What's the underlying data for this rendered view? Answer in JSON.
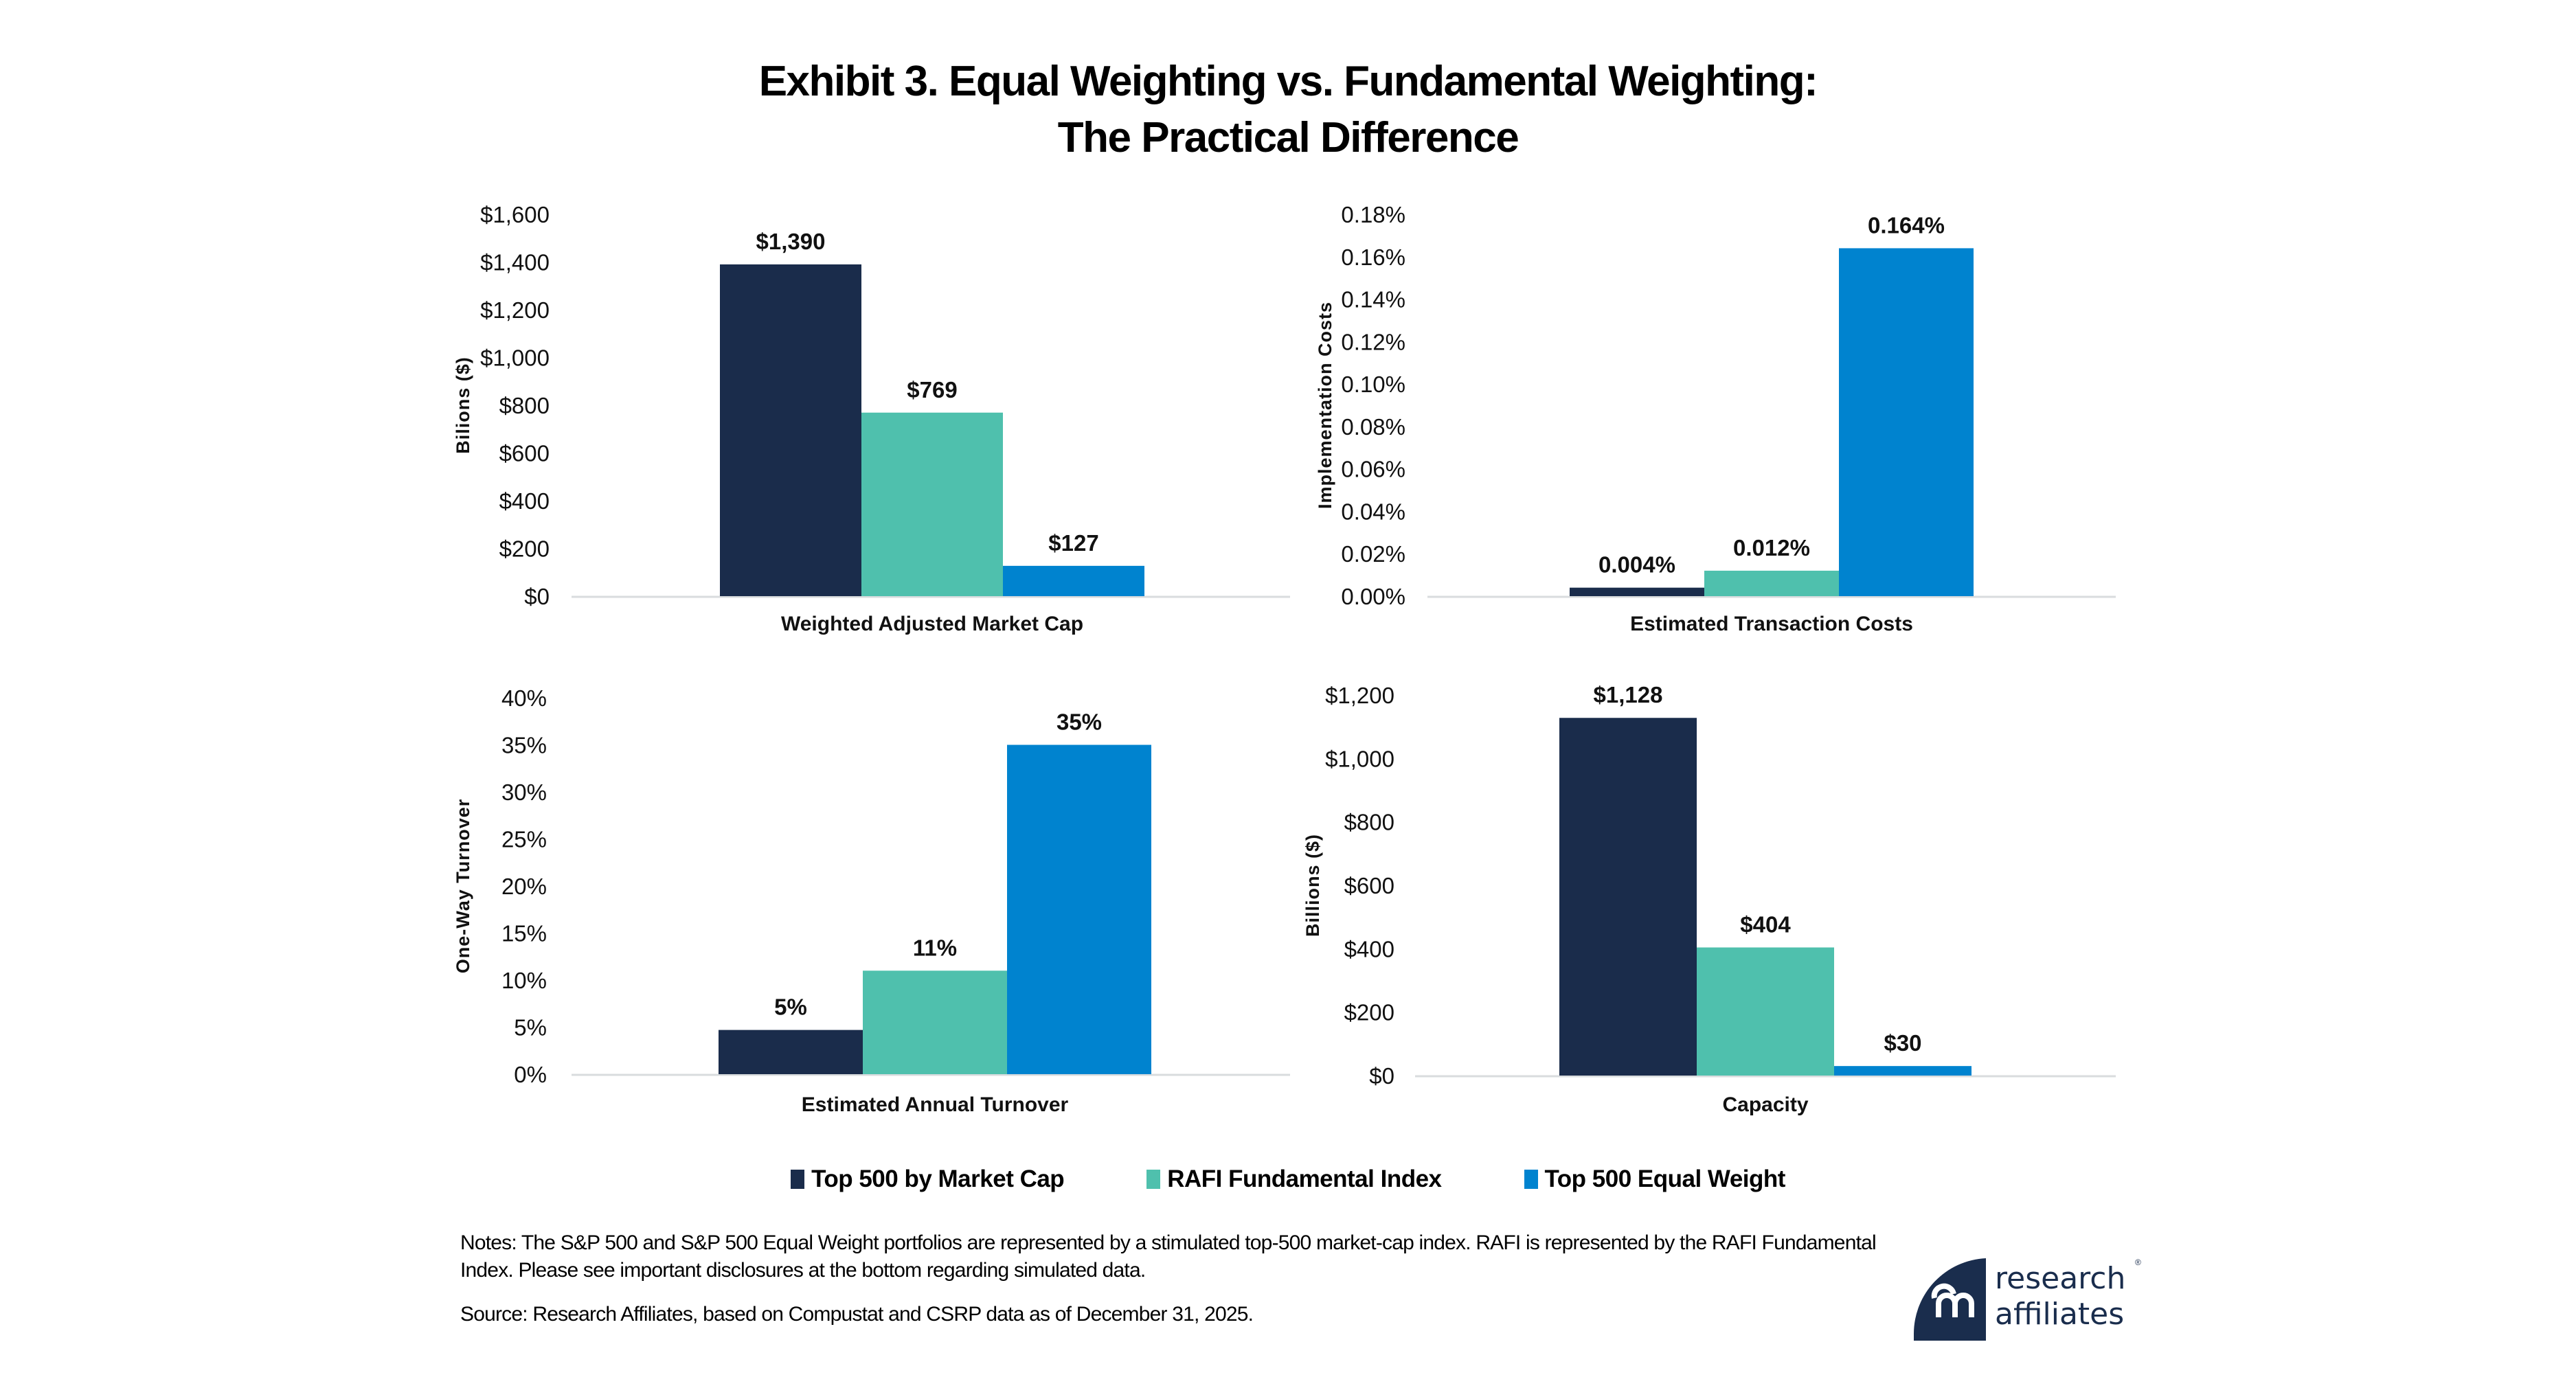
{
  "title": {
    "line1": "Exhibit 3. Equal Weighting vs. Fundamental Weighting:",
    "line2": "The Practical Difference"
  },
  "legend": [
    {
      "label": "Top 500 by Market Cap",
      "color": "#1a2c4b"
    },
    {
      "label": "RAFI Fundamental Index",
      "color": "#4fc0ad"
    },
    {
      "label": "Top 500 Equal Weight",
      "color": "#0083cf"
    }
  ],
  "chart_data": [
    {
      "type": "bar",
      "position": "top-left",
      "category": "Weighted Adjusted Market Cap",
      "ylabel": "Bilions ($)",
      "ylim": [
        0,
        1600
      ],
      "yticks": [
        0,
        200,
        400,
        600,
        800,
        1000,
        1200,
        1400,
        1600
      ],
      "ytick_labels": [
        "$0",
        "$200",
        "$400",
        "$600",
        "$800",
        "$1,000",
        "$1,200",
        "$1,400",
        "$1,600"
      ],
      "series": [
        {
          "name": "Top 500 by Market Cap",
          "value": 1390,
          "label": "$1,390"
        },
        {
          "name": "RAFI Fundamental Index",
          "value": 769,
          "label": "$769"
        },
        {
          "name": "Top 500 Equal Weight",
          "value": 127,
          "label": "$127"
        }
      ]
    },
    {
      "type": "bar",
      "position": "top-right",
      "category": "Estimated Transaction Costs",
      "ylabel": "Implementation Costs",
      "ylim": [
        0,
        0.18
      ],
      "yticks": [
        0,
        0.02,
        0.04,
        0.06,
        0.08,
        0.1,
        0.12,
        0.14,
        0.16,
        0.18
      ],
      "ytick_labels": [
        "0.00%",
        "0.02%",
        "0.04%",
        "0.06%",
        "0.08%",
        "0.10%",
        "0.12%",
        "0.14%",
        "0.16%",
        "0.18%"
      ],
      "series": [
        {
          "name": "Top 500 by Market Cap",
          "value": 0.004,
          "label": "0.004%"
        },
        {
          "name": "RAFI Fundamental Index",
          "value": 0.012,
          "label": "0.012%"
        },
        {
          "name": "Top 500 Equal Weight",
          "value": 0.164,
          "label": "0.164%"
        }
      ]
    },
    {
      "type": "bar",
      "position": "bottom-left",
      "category": "Estimated Annual Turnover",
      "ylabel": "One-Way Turnover",
      "ylim": [
        0,
        40
      ],
      "yticks": [
        0,
        5,
        10,
        15,
        20,
        25,
        30,
        35,
        40
      ],
      "ytick_labels": [
        "0%",
        "5%",
        "10%",
        "15%",
        "20%",
        "25%",
        "30%",
        "35%",
        "40%"
      ],
      "series": [
        {
          "name": "Top 500 by Market Cap",
          "value": 4.7,
          "label": "5%"
        },
        {
          "name": "RAFI Fundamental Index",
          "value": 11,
          "label": "11%"
        },
        {
          "name": "Top 500 Equal Weight",
          "value": 35,
          "label": "35%"
        }
      ]
    },
    {
      "type": "bar",
      "position": "bottom-right",
      "category": "Capacity",
      "ylabel": "Billions ($)",
      "ylim": [
        0,
        1200
      ],
      "yticks": [
        0,
        200,
        400,
        600,
        800,
        1000,
        1200
      ],
      "ytick_labels": [
        "$0",
        "$200",
        "$400",
        "$600",
        "$800",
        "$1,000",
        "$1,200"
      ],
      "series": [
        {
          "name": "Top 500 by Market Cap",
          "value": 1128,
          "label": "$1,128"
        },
        {
          "name": "RAFI Fundamental Index",
          "value": 404,
          "label": "$404"
        },
        {
          "name": "Top 500 Equal Weight",
          "value": 30,
          "label": "$30"
        }
      ]
    }
  ],
  "notes": "Notes: The S&P 500 and S&P 500 Equal Weight portfolios are represented by a stimulated top-500 market-cap index. RAFI is represented by the RAFI Fundamental Index. Please see important disclosures at the bottom regarding simulated data.",
  "source": "Source: Research Affiliates, based on Compustat and CSRP data as of December 31, 2025.",
  "logo": {
    "line1": "research",
    "line2": "affiliates",
    "mark": "®",
    "color": "#1a2d4d"
  }
}
